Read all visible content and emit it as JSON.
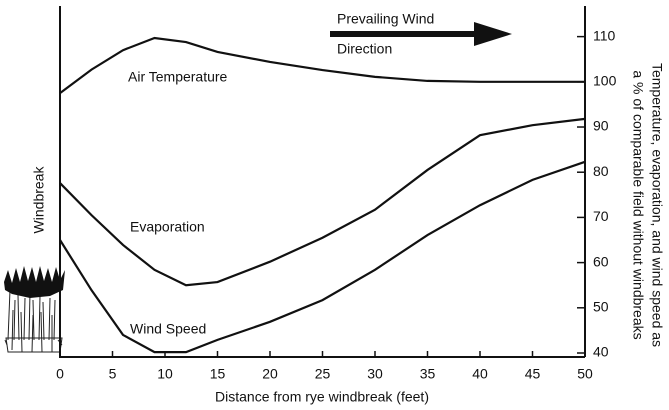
{
  "chart_data": {
    "type": "line",
    "left_label": "Windbreak",
    "annotation": [
      "Prevailing Wind",
      "Direction"
    ],
    "xlabel": "Distance from rye windbreak (feet)",
    "ylabel": [
      "Temperature, evaporation, and wind speed as",
      "a % of comparable field without windbreaks"
    ],
    "x": [
      0,
      3,
      6,
      9,
      12,
      15,
      20,
      25,
      30,
      35,
      40,
      45,
      50
    ],
    "series": [
      {
        "name": "Air Temperature",
        "color": "#111111",
        "values": [
          97.5,
          102.7,
          107.0,
          109.7,
          108.8,
          106.6,
          104.4,
          102.6,
          101.1,
          100.2,
          100,
          100,
          100
        ]
      },
      {
        "name": "Evaporation",
        "color": "#111111",
        "values": [
          77.6,
          70.5,
          63.9,
          58.4,
          55.0,
          55.7,
          60.2,
          65.5,
          71.7,
          80.5,
          88.2,
          90.4,
          91.8
        ]
      },
      {
        "name": "Wind Speed",
        "color": "#111111",
        "values": [
          65.0,
          53.9,
          44.0,
          40.2,
          40.2,
          42.9,
          46.9,
          51.7,
          58.4,
          66.1,
          72.7,
          78.3,
          82.3
        ]
      }
    ],
    "xlim": [
      0,
      50
    ],
    "xticks": [
      0,
      5,
      10,
      15,
      20,
      25,
      30,
      35,
      40,
      45,
      50
    ],
    "ylim": [
      40,
      116
    ],
    "yticks": [
      40,
      50,
      60,
      70,
      80,
      90,
      100,
      110
    ],
    "grid": false
  }
}
